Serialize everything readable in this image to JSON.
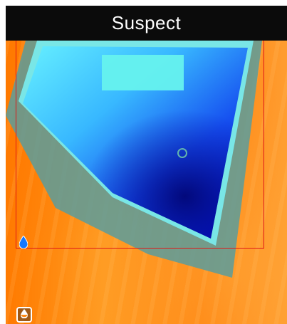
{
  "header": {
    "title": "Suspect"
  },
  "icons": {
    "status": "water-drop-icon",
    "mode": "moisture-mode-icon"
  },
  "colors": {
    "header_bg": "#0b0b0b",
    "reticle": "#e01818",
    "warm": "#ff8a12",
    "cool": "#0a2de0",
    "cyan": "#40f0f0"
  }
}
